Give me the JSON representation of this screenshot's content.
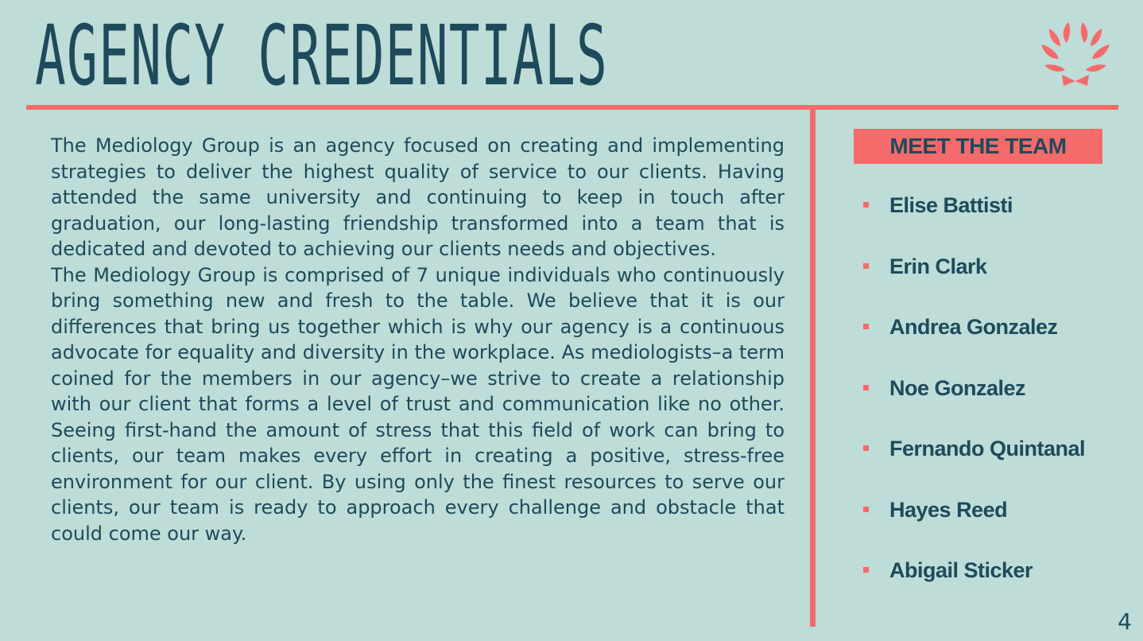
{
  "slide": {
    "title": "AGENCY CREDENTIALS",
    "page_number": "4"
  },
  "body": {
    "paragraph_1": "The Mediology Group is an agency focused on creating and implementing strategies to deliver the highest quality of service to our clients. Having attended the same university and continuing to keep in touch after graduation, our long-lasting friendship transformed into a team that is dedicated and devoted to achieving our clients needs and objectives.",
    "paragraph_2": "The Mediology Group is comprised of 7 unique individuals who continuously bring something new and fresh to the table. We believe that it is our differences that bring us together which is why our agency is a continuous advocate for equality and diversity in the workplace. As mediologists–a term coined for the members in our agency–we strive to create a relationship with our client that forms a level of trust and communication like no other. Seeing first-hand the amount of stress that this field of work can bring to clients, our team makes every effort in creating a positive, stress-free environment for our client. By using only the finest resources to serve our clients, our team is ready to approach every challenge and obstacle that could come our way."
  },
  "team": {
    "header": "MEET THE TEAM",
    "members": [
      "Elise Battisti",
      "Erin Clark",
      "Andrea Gonzalez",
      "Noe Gonzalez",
      "Fernando Quintanal",
      "Hayes Reed",
      "Abigail Sticker"
    ]
  },
  "icons": {
    "logo": "laurel-wreath-icon",
    "bullet": "square-bullet-icon"
  },
  "colors": {
    "background": "#bedcd8",
    "text": "#1e4a5b",
    "accent": "#f56a6a"
  }
}
